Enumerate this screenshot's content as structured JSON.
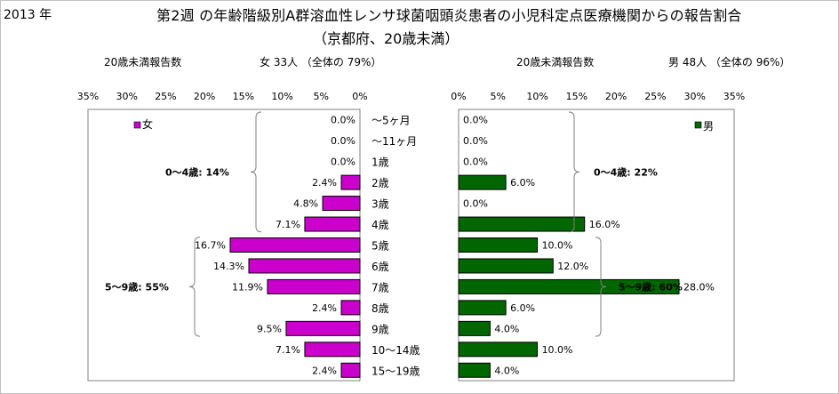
{
  "header": {
    "year": "2013 年",
    "title_line1": "第2週 の年齢階級別A群溶血性レンサ球菌咽頭炎患者の小児科定点医療機関からの報告割合",
    "title_line2": "（京都府、20歳未満）"
  },
  "left_panel": {
    "subtitle_label": "20歳未満報告数",
    "subtitle_total": "女  33人  （全体の   79%）",
    "legend": "女",
    "color": "#CC00CC",
    "group_labels": [
      {
        "text": "0～4歳: 14%",
        "from": 0,
        "to": 5
      },
      {
        "text": "5～9歳: 55%",
        "from": 6,
        "to": 10
      }
    ]
  },
  "right_panel": {
    "subtitle_label": "20歳未満報告数",
    "subtitle_total": "男  48人  （全体の   96%）",
    "legend": "男",
    "color": "#006600",
    "group_labels": [
      {
        "text": "0～4歳: 22%",
        "from": 0,
        "to": 5
      },
      {
        "text": "5～9歳: 60%",
        "from": 6,
        "to": 10
      }
    ]
  },
  "chart_data": {
    "type": "bar",
    "orientation": "horizontal",
    "categories": [
      "～5ヶ月",
      "～11ヶ月",
      "1歳",
      "2歳",
      "3歳",
      "4歳",
      "5歳",
      "6歳",
      "7歳",
      "8歳",
      "9歳",
      "10～14歳",
      "15～19歳"
    ],
    "series": [
      {
        "name": "女",
        "values": [
          0.0,
          0.0,
          0.0,
          2.4,
          4.8,
          7.1,
          16.7,
          14.3,
          11.9,
          2.4,
          9.5,
          7.1,
          2.4
        ],
        "labels": [
          "0.0%",
          "0.0%",
          "0.0%",
          "2.4%",
          "4.8%",
          "7.1%",
          "16.7%",
          "14.3%",
          "11.9%",
          "2.4%",
          "9.5%",
          "7.1%",
          "2.4%"
        ]
      },
      {
        "name": "男",
        "values": [
          0.0,
          0.0,
          0.0,
          6.0,
          0.0,
          16.0,
          10.0,
          12.0,
          28.0,
          6.0,
          4.0,
          10.0,
          4.0
        ],
        "labels": [
          "0.0%",
          "0.0%",
          "0.0%",
          "6.0%",
          "0.0%",
          "16.0%",
          "10.0%",
          "12.0%",
          "28.0%",
          "6.0%",
          "4.0%",
          "10.0%",
          "4.0%"
        ]
      }
    ],
    "xlim": [
      0,
      35
    ],
    "xticks": [
      "0%",
      "5%",
      "10%",
      "15%",
      "20%",
      "25%",
      "30%",
      "35%"
    ],
    "unit": "%",
    "grid": false
  }
}
